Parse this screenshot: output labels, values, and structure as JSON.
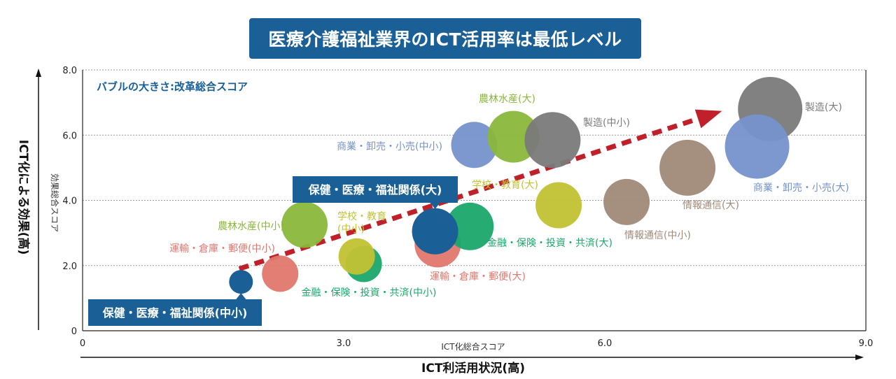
{
  "header": {
    "title": "医療介護福祉業界のICT活用率は最低レベル"
  },
  "chart_data": {
    "type": "scatter",
    "subtitle": "バブルの大きさ:改革総合スコア",
    "xlabel": "ICT化総合スコア",
    "ylabel": "効果総合スコア",
    "x_axis_title": "ICT利活用状況(高)",
    "y_axis_title": "ICT化による効果(高)",
    "xlim": [
      0,
      9
    ],
    "ylim": [
      0,
      8
    ],
    "x_ticks": [
      "0",
      "3.0",
      "6.0",
      "9.0"
    ],
    "y_ticks": [
      "0",
      "2.0",
      "4.0",
      "6.0",
      "8.0"
    ],
    "grid": true,
    "trend": {
      "from": [
        1.8,
        1.9
      ],
      "to": [
        7.3,
        6.7
      ],
      "color": "#c0202a"
    },
    "points": [
      {
        "label": "保健・医療・福祉関係(中小)",
        "x": 1.82,
        "y": 1.5,
        "size": 17,
        "color": "#1a5f95",
        "highlight": true
      },
      {
        "label": "運輸・倉庫・郵便(中小)",
        "x": 2.27,
        "y": 1.75,
        "size": 26,
        "color": "#e0776c"
      },
      {
        "label": "農林水産(中小)",
        "x": 2.55,
        "y": 3.25,
        "size": 33,
        "color": "#8ab73b"
      },
      {
        "label": "金融・保険・投資・共済(中小)",
        "x": 3.23,
        "y": 2.05,
        "size": 26,
        "color": "#1aa86a"
      },
      {
        "label": "学校・教育(中小)",
        "x": 3.15,
        "y": 2.28,
        "size": 26,
        "color": "#c2c233"
      },
      {
        "label": "運輸・倉庫・郵便(大)",
        "x": 4.08,
        "y": 2.65,
        "size": 33,
        "color": "#e0776c"
      },
      {
        "label": "金融・保険・投資・共済(大)",
        "x": 4.45,
        "y": 3.2,
        "size": 34,
        "color": "#1aa86a"
      },
      {
        "label": "保健・医療・福祉関係(大)",
        "x": 4.05,
        "y": 3.05,
        "size": 33,
        "color": "#1a5f95",
        "highlight": true
      },
      {
        "label": "学校・教育(大)",
        "x": 5.47,
        "y": 3.85,
        "size": 33,
        "color": "#c2c233"
      },
      {
        "label": "情報通信(中小)",
        "x": 6.25,
        "y": 3.95,
        "size": 33,
        "color": "#a08a78"
      },
      {
        "label": "商業・卸売・小売(中小)",
        "x": 4.5,
        "y": 5.7,
        "size": 33,
        "color": "#7592cc"
      },
      {
        "label": "農林水産(大)",
        "x": 4.95,
        "y": 5.95,
        "size": 37,
        "color": "#8ab73b"
      },
      {
        "label": "製造(中小)",
        "x": 5.4,
        "y": 5.85,
        "size": 40,
        "color": "#7a7a7a"
      },
      {
        "label": "情報通信(大)",
        "x": 6.95,
        "y": 5.0,
        "size": 40,
        "color": "#a08a78"
      },
      {
        "label": "製造(大)",
        "x": 7.9,
        "y": 6.8,
        "size": 46,
        "color": "#7a7a7a"
      },
      {
        "label": "商業・卸売・小売(大)",
        "x": 7.75,
        "y": 5.65,
        "size": 46,
        "color": "#7592cc"
      }
    ]
  }
}
